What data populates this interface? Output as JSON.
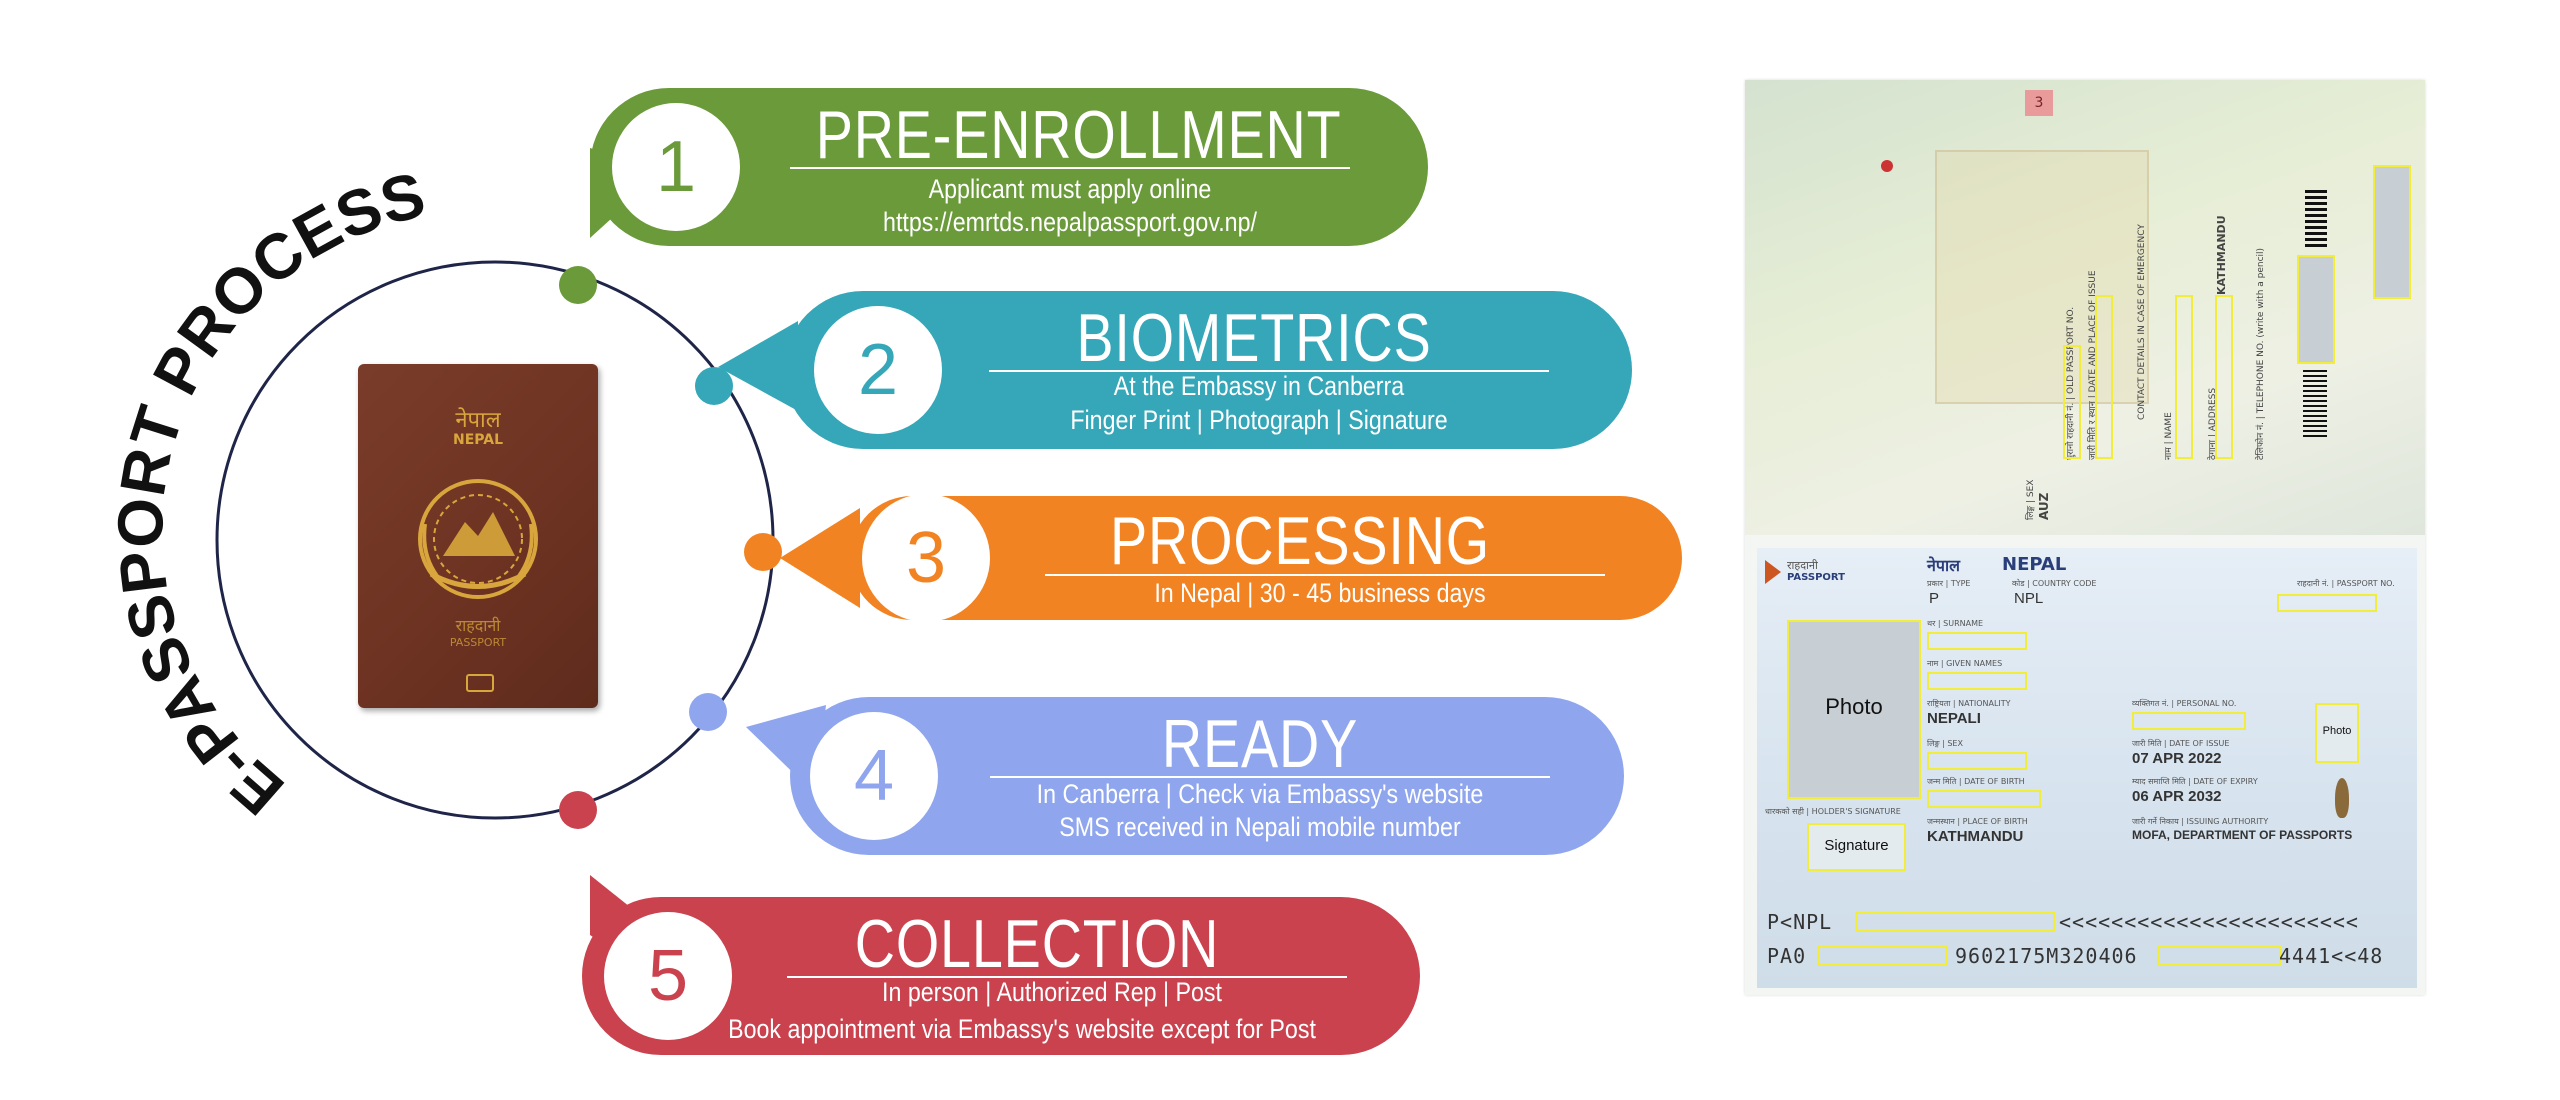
{
  "title": "E-PASSPORT PROCESS",
  "colors": {
    "step1": "#6a9a3a",
    "step2": "#35a7b8",
    "step3": "#f28322",
    "step4": "#8fa6ee",
    "step5": "#c9424e",
    "ring": "#1f2548"
  },
  "steps": [
    {
      "number": "1",
      "title": "PRE-ENROLLMENT",
      "lines": [
        "Applicant must apply online",
        "https://emrtds.nepalpassport.gov.np/"
      ]
    },
    {
      "number": "2",
      "title": "BIOMETRICS",
      "lines": [
        "At the Embassy in Canberra",
        "Finger Print | Photograph | Signature"
      ]
    },
    {
      "number": "3",
      "title": "PROCESSING",
      "lines": [
        "In Nepal | 30 - 45 business days"
      ]
    },
    {
      "number": "4",
      "title": "READY",
      "lines": [
        "In Canberra | Check via Embassy's website",
        "SMS received in Nepali mobile number"
      ]
    },
    {
      "number": "5",
      "title": "COLLECTION",
      "lines": [
        "In person | Authorized Rep | Post",
        "Book appointment via Embassy's website except for Post"
      ]
    }
  ],
  "booklet": {
    "country_nepali": "नेपाल",
    "country": "NEPAL",
    "passport_nepali": "राहदानी",
    "passport": "PASSPORT"
  },
  "passport_page": {
    "page_number": "3",
    "header_nepali": "राहदानी",
    "header": "PASSPORT",
    "country_nepali": "नेपाल",
    "country": "NEPAL",
    "type_label": "प्रकार | TYPE",
    "type_value": "P",
    "country_code_label": "कोड | COUNTRY CODE",
    "country_code_value": "NPL",
    "passport_no_label": "राहदानी नं. | PASSPORT NO.",
    "photo_label": "Photo",
    "small_photo_label": "Photo",
    "signature_label": "Signature",
    "surname_label": "थर | SURNAME",
    "given_names_label": "नाम | GIVEN NAMES",
    "nationality_label": "राष्ट्रियता | NATIONALITY",
    "nationality_value": "NEPALI",
    "sex_label": "लिङ्ग | SEX",
    "dob_label": "जन्म मिति | DATE OF BIRTH",
    "holder_signature_label": "धारकको सही | HOLDER'S SIGNATURE",
    "place_of_birth_label": "जन्मस्थान | PLACE OF BIRTH",
    "place_of_birth_value": "KATHMANDU",
    "personal_no_label": "व्यक्तिगत नं. | PERSONAL NO.",
    "issue_label": "जारी मिति | DATE OF ISSUE",
    "issue_value": "07 APR 2022",
    "expiry_label": "म्याद समाप्ति मिति | DATE OF EXPIRY",
    "expiry_value": "06 APR 2032",
    "authority_label": "जारी गर्ने निकाय | ISSUING AUTHORITY",
    "authority_value": "MOFA, DEPARTMENT OF PASSPORTS",
    "mrz_line1_start": "P<NPL",
    "mrz_line1_fill": "<<<<<<<<<<<<<<<<<<<<<<<",
    "mrz_line2_start": "PA0",
    "mrz_line2_mid": "9602175M320406",
    "mrz_line2_end": "4441<<48",
    "top_sex_label": "लिङ्ग | SEX",
    "top_sex_value": "AUZ",
    "old_passport_label": "पुरानो राहदानी नं. | OLD PASSPORT NO.",
    "date_place_issue_label": "जारी मिति र स्थान | DATE AND PLACE OF ISSUE",
    "contact_label": "CONTACT DETAILS IN CASE OF EMERGENCY",
    "name_label": "नाम | NAME",
    "address_label": "ठेगाना | ADDRESS",
    "address_value": "KATHMANDU",
    "telephone_label": "टेलिफोन नं. | TELEPHONE NO. (write with a pencil)"
  }
}
